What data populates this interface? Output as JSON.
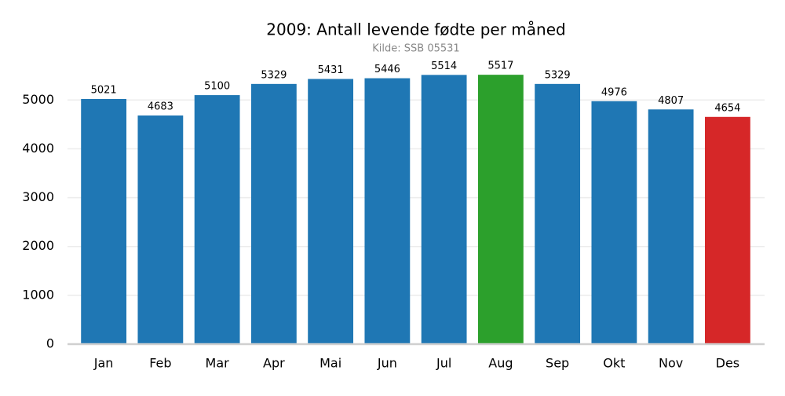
{
  "chart_data": {
    "type": "bar",
    "title": "2009: Antall levende fødte per måned",
    "subtitle": "Kilde: SSB 05531",
    "categories": [
      "Jan",
      "Feb",
      "Mar",
      "Apr",
      "Mai",
      "Jun",
      "Jul",
      "Aug",
      "Sep",
      "Okt",
      "Nov",
      "Des"
    ],
    "values": [
      5021,
      4683,
      5100,
      5329,
      5431,
      5446,
      5514,
      5517,
      5329,
      4976,
      4807,
      4654
    ],
    "colors": [
      "#1f77b4",
      "#1f77b4",
      "#1f77b4",
      "#1f77b4",
      "#1f77b4",
      "#1f77b4",
      "#1f77b4",
      "#2ca02c",
      "#1f77b4",
      "#1f77b4",
      "#1f77b4",
      "#d62728"
    ],
    "ylim": [
      0,
      5793
    ],
    "yticks": [
      0,
      1000,
      2000,
      3000,
      4000,
      5000
    ],
    "grid": true
  }
}
